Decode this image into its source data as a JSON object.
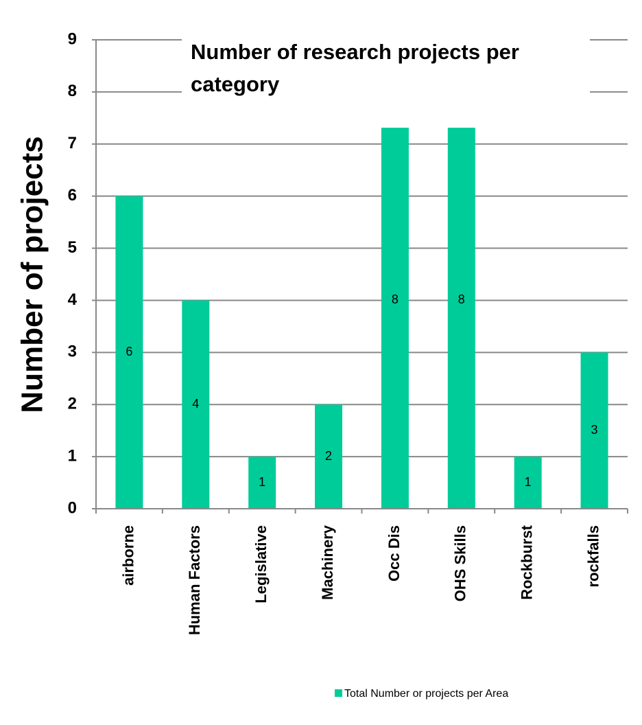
{
  "chart_data": {
    "type": "bar",
    "title": "Number of research projects per category",
    "y_label": "Number of projects",
    "categories": [
      "airborne",
      "Human Factors",
      "Legislative",
      "Machinery",
      "Occ Dis",
      "OHS Skills",
      "Rockburst",
      "rockfalls"
    ],
    "series": [
      {
        "name": "Total Number or projects per Area",
        "color": "#00cc99",
        "values": [
          6,
          4,
          1,
          2,
          8,
          8,
          1,
          3
        ]
      }
    ],
    "ylim": [
      0,
      9
    ],
    "yticks": [
      0,
      1,
      2,
      3,
      4,
      5,
      6,
      7,
      8,
      9
    ],
    "grid": true
  }
}
